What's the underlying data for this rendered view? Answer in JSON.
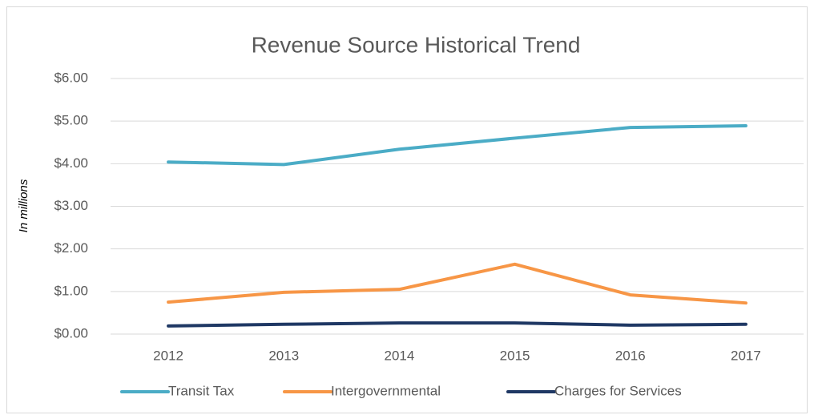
{
  "chart_data": {
    "type": "line",
    "title": "Revenue Source Historical Trend",
    "y_label": "In millions",
    "categories": [
      "2012",
      "2013",
      "2014",
      "2015",
      "2016",
      "2017"
    ],
    "series": [
      {
        "name": "Transit Tax",
        "color": "#4bacc6",
        "values": [
          4.04,
          3.98,
          4.34,
          4.6,
          4.85,
          4.89
        ]
      },
      {
        "name": "Intergovernmental",
        "color": "#f79646",
        "values": [
          0.75,
          0.98,
          1.05,
          1.64,
          0.92,
          0.73
        ]
      },
      {
        "name": "Charges for Services",
        "color": "#1f3864",
        "values": [
          0.19,
          0.23,
          0.26,
          0.26,
          0.21,
          0.23
        ]
      }
    ],
    "ylim": [
      0,
      6
    ],
    "yticks": [
      {
        "value": 0,
        "label": "$0.00"
      },
      {
        "value": 1,
        "label": "$1.00"
      },
      {
        "value": 2,
        "label": "$2.00"
      },
      {
        "value": 3,
        "label": "$3.00"
      },
      {
        "value": 4,
        "label": "$4.00"
      },
      {
        "value": 5,
        "label": "$5.00"
      },
      {
        "value": 6,
        "label": "$6.00"
      }
    ],
    "grid": true,
    "legend": "bottom"
  }
}
